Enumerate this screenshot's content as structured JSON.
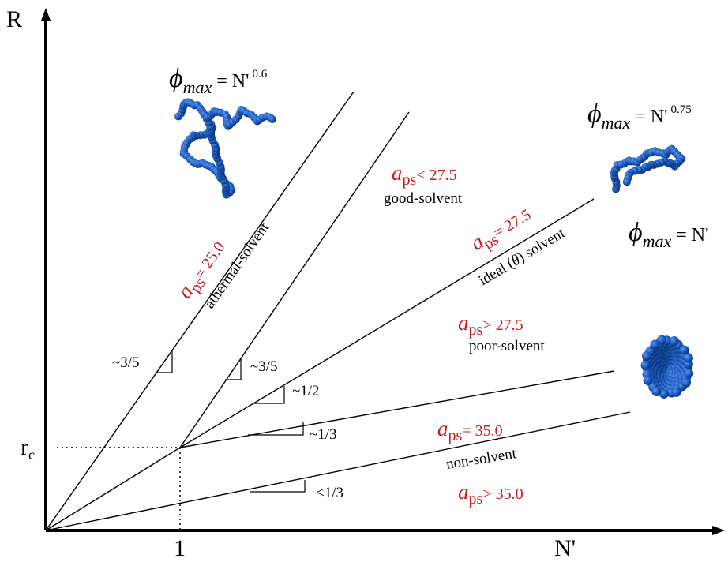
{
  "axes": {
    "y_label": "R",
    "x_label": "N'",
    "y_mark": "r",
    "y_mark_sub": "c",
    "x_mark": "1"
  },
  "regimes": [
    {
      "id": "athermal",
      "a_value": "a",
      "a_sub": "ps",
      "a_rel": "= 25.0",
      "name": "athermal-solvent",
      "slope": "~3/5"
    },
    {
      "id": "good",
      "a_value": "a",
      "a_sub": "ps",
      "a_rel": "< 27.5",
      "name": "good-solvent",
      "slope": "~3/5"
    },
    {
      "id": "ideal",
      "a_value": "a",
      "a_sub": "ps",
      "a_rel": "= 27.5",
      "name_pre": "ideal (",
      "name_theta": "θ",
      "name_post": ") solvent",
      "slope": "~1/2"
    },
    {
      "id": "poor",
      "a_value": "a",
      "a_sub": "ps",
      "a_rel": "> 27.5",
      "name": "poor-solvent",
      "slope": "~1/3"
    },
    {
      "id": "non",
      "a_value": "a",
      "a_sub": "ps",
      "a_rel": "= 35.0",
      "name": "non-solvent",
      "slope": "<1/3"
    },
    {
      "id": "non-above",
      "a_value": "a",
      "a_sub": "ps",
      "a_rel": "> 35.0"
    }
  ],
  "phi_labels": [
    {
      "symbol": "ϕ",
      "sub": "max",
      "eq": "= N'",
      "exp": "0.6"
    },
    {
      "symbol": "ϕ",
      "sub": "max",
      "eq": "= N'",
      "exp": "0.75"
    },
    {
      "symbol": "ϕ",
      "sub": "max",
      "eq": "= N'",
      "exp": ""
    }
  ],
  "colors": {
    "accent_red": "#c8191e",
    "polymer_blue": "#1f5fc4",
    "polymer_dark": "#0d3f8f"
  }
}
